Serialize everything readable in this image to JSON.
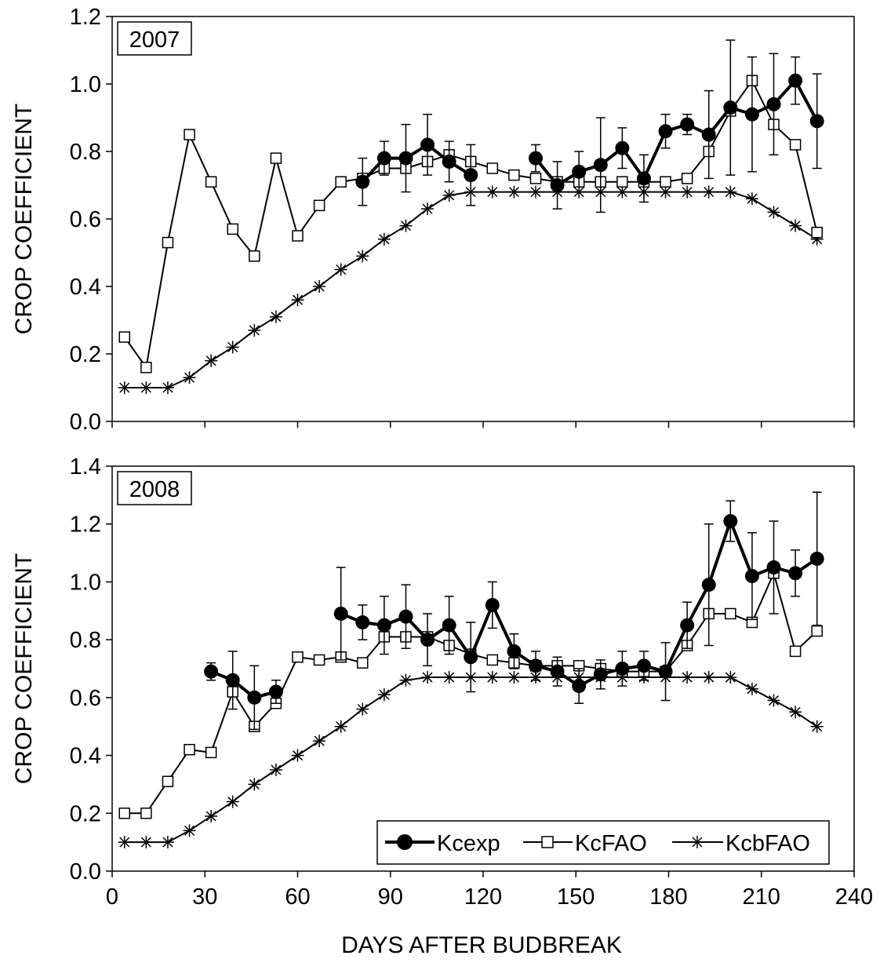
{
  "chart_data": [
    {
      "type": "line",
      "panel_label": "2007",
      "xlabel": "",
      "ylabel": "CROP COEFFICIENT",
      "xlim": [
        0,
        240
      ],
      "ylim": [
        0,
        1.2
      ],
      "yticks": [
        "0.0",
        "0.2",
        "0.4",
        "0.6",
        "0.8",
        "1.0",
        "1.2"
      ],
      "xticks": [],
      "grid": false,
      "series": [
        {
          "name": "Kcexp",
          "marker": "filled-circle",
          "points": [
            [
              81,
              0.71
            ],
            [
              88,
              0.78
            ],
            [
              95,
              0.78
            ],
            [
              102,
              0.82
            ],
            [
              109,
              0.77
            ],
            [
              116,
              0.73
            ],
            null,
            [
              137,
              0.78
            ],
            [
              144,
              0.7
            ],
            [
              151,
              0.74
            ],
            [
              158,
              0.76
            ],
            [
              165,
              0.81
            ],
            [
              172,
              0.72
            ],
            [
              179,
              0.86
            ],
            [
              186,
              0.88
            ],
            [
              193,
              0.85
            ],
            [
              200,
              0.93
            ],
            [
              207,
              0.91
            ],
            [
              214,
              0.94
            ],
            [
              221,
              1.01
            ],
            [
              228,
              0.89
            ]
          ],
          "errors": [
            0.07,
            0.05,
            0.1,
            0.09,
            0.06,
            0.09,
            null,
            0.04,
            0.07,
            0.06,
            0.14,
            0.06,
            0.07,
            0.05,
            0.03,
            0.13,
            0.2,
            0.17,
            0.15,
            0.07,
            0.14
          ]
        },
        {
          "name": "KcFAO",
          "marker": "open-square",
          "points": [
            [
              4,
              0.25
            ],
            [
              11,
              0.16
            ],
            [
              18,
              0.53
            ],
            [
              25,
              0.85
            ],
            [
              32,
              0.71
            ],
            [
              39,
              0.57
            ],
            [
              46,
              0.49
            ],
            [
              53,
              0.78
            ],
            [
              60,
              0.55
            ],
            [
              67,
              0.64
            ],
            [
              74,
              0.71
            ],
            [
              81,
              0.72
            ],
            [
              88,
              0.75
            ],
            [
              95,
              0.75
            ],
            [
              102,
              0.77
            ],
            [
              109,
              0.79
            ],
            [
              116,
              0.77
            ],
            [
              123,
              0.75
            ],
            [
              130,
              0.73
            ],
            [
              137,
              0.72
            ],
            [
              144,
              0.71
            ],
            [
              151,
              0.71
            ],
            [
              158,
              0.71
            ],
            [
              165,
              0.71
            ],
            [
              172,
              0.71
            ],
            [
              179,
              0.71
            ],
            [
              186,
              0.72
            ],
            [
              193,
              0.8
            ],
            [
              200,
              0.92
            ],
            [
              207,
              1.01
            ],
            [
              214,
              0.88
            ],
            [
              221,
              0.82
            ],
            [
              228,
              0.56
            ]
          ]
        },
        {
          "name": "KcbFAO",
          "marker": "asterisk",
          "points": [
            [
              4,
              0.1
            ],
            [
              11,
              0.1
            ],
            [
              18,
              0.1
            ],
            [
              25,
              0.13
            ],
            [
              32,
              0.18
            ],
            [
              39,
              0.22
            ],
            [
              46,
              0.27
            ],
            [
              53,
              0.31
            ],
            [
              60,
              0.36
            ],
            [
              67,
              0.4
            ],
            [
              74,
              0.45
            ],
            [
              81,
              0.49
            ],
            [
              88,
              0.54
            ],
            [
              95,
              0.58
            ],
            [
              102,
              0.63
            ],
            [
              109,
              0.67
            ],
            [
              116,
              0.68
            ],
            [
              123,
              0.68
            ],
            [
              130,
              0.68
            ],
            [
              137,
              0.68
            ],
            [
              144,
              0.68
            ],
            [
              151,
              0.68
            ],
            [
              158,
              0.68
            ],
            [
              165,
              0.68
            ],
            [
              172,
              0.68
            ],
            [
              179,
              0.68
            ],
            [
              186,
              0.68
            ],
            [
              193,
              0.68
            ],
            [
              200,
              0.68
            ],
            [
              207,
              0.66
            ],
            [
              214,
              0.62
            ],
            [
              221,
              0.58
            ],
            [
              228,
              0.54
            ]
          ]
        }
      ]
    },
    {
      "type": "line",
      "panel_label": "2008",
      "xlabel": "DAYS AFTER BUDBREAK",
      "ylabel": "CROP COEFFICIENT",
      "xlim": [
        0,
        240
      ],
      "ylim": [
        0,
        1.4
      ],
      "yticks": [
        "0.0",
        "0.2",
        "0.4",
        "0.6",
        "0.8",
        "1.0",
        "1.2",
        "1.4"
      ],
      "xticks": [
        "0",
        "30",
        "60",
        "90",
        "120",
        "150",
        "180",
        "210",
        "240"
      ],
      "grid": false,
      "legend_position": "bottom-right",
      "series": [
        {
          "name": "Kcexp",
          "marker": "filled-circle",
          "points": [
            [
              32,
              0.69
            ],
            [
              39,
              0.66
            ],
            [
              46,
              0.6
            ],
            [
              53,
              0.62
            ],
            null,
            [
              74,
              0.89
            ],
            [
              81,
              0.86
            ],
            [
              88,
              0.85
            ],
            [
              95,
              0.88
            ],
            [
              102,
              0.8
            ],
            [
              109,
              0.85
            ],
            [
              116,
              0.74
            ],
            [
              123,
              0.92
            ],
            [
              130,
              0.76
            ],
            [
              137,
              0.71
            ],
            [
              144,
              0.69
            ],
            [
              151,
              0.64
            ],
            [
              158,
              0.68
            ],
            [
              165,
              0.7
            ],
            [
              172,
              0.71
            ],
            [
              179,
              0.69
            ],
            [
              186,
              0.85
            ],
            [
              193,
              0.99
            ],
            [
              200,
              1.21
            ],
            [
              207,
              1.02
            ],
            [
              214,
              1.05
            ],
            [
              221,
              1.03
            ],
            [
              228,
              1.08
            ]
          ],
          "errors": [
            0.03,
            0.1,
            0.11,
            0.04,
            null,
            0.16,
            0.06,
            0.1,
            0.11,
            0.09,
            0.1,
            0.12,
            0.08,
            0.06,
            0.05,
            0.05,
            0.06,
            0.05,
            0.06,
            0.05,
            0.1,
            0.08,
            0.21,
            0.07,
            0.15,
            0.16,
            0.08,
            0.23
          ]
        },
        {
          "name": "KcFAO",
          "marker": "open-square",
          "points": [
            [
              4,
              0.2
            ],
            [
              11,
              0.2
            ],
            [
              18,
              0.31
            ],
            [
              25,
              0.42
            ],
            [
              32,
              0.41
            ],
            [
              39,
              0.62
            ],
            [
              46,
              0.5
            ],
            [
              53,
              0.58
            ],
            [
              60,
              0.74
            ],
            [
              67,
              0.73
            ],
            [
              74,
              0.74
            ],
            [
              81,
              0.72
            ],
            [
              88,
              0.81
            ],
            [
              95,
              0.81
            ],
            [
              102,
              0.81
            ],
            [
              109,
              0.78
            ],
            [
              116,
              0.75
            ],
            [
              123,
              0.73
            ],
            [
              130,
              0.72
            ],
            [
              137,
              0.71
            ],
            [
              144,
              0.71
            ],
            [
              151,
              0.71
            ],
            [
              158,
              0.7
            ],
            [
              165,
              0.69
            ],
            [
              172,
              0.69
            ],
            [
              179,
              0.69
            ],
            [
              186,
              0.78
            ],
            [
              193,
              0.89
            ],
            [
              200,
              0.89
            ],
            [
              207,
              0.86
            ],
            [
              214,
              1.03
            ],
            [
              221,
              0.76
            ],
            [
              228,
              0.83
            ]
          ]
        },
        {
          "name": "KcbFAO",
          "marker": "asterisk",
          "points": [
            [
              4,
              0.1
            ],
            [
              11,
              0.1
            ],
            [
              18,
              0.1
            ],
            [
              25,
              0.14
            ],
            [
              32,
              0.19
            ],
            [
              39,
              0.24
            ],
            [
              46,
              0.3
            ],
            [
              53,
              0.35
            ],
            [
              60,
              0.4
            ],
            [
              67,
              0.45
            ],
            [
              74,
              0.5
            ],
            [
              81,
              0.56
            ],
            [
              88,
              0.61
            ],
            [
              95,
              0.66
            ],
            [
              102,
              0.67
            ],
            [
              109,
              0.67
            ],
            [
              116,
              0.67
            ],
            [
              123,
              0.67
            ],
            [
              130,
              0.67
            ],
            [
              137,
              0.67
            ],
            [
              144,
              0.67
            ],
            [
              151,
              0.67
            ],
            [
              158,
              0.67
            ],
            [
              165,
              0.67
            ],
            [
              172,
              0.67
            ],
            [
              179,
              0.67
            ],
            [
              186,
              0.67
            ],
            [
              193,
              0.67
            ],
            [
              200,
              0.67
            ],
            [
              207,
              0.63
            ],
            [
              214,
              0.59
            ],
            [
              221,
              0.55
            ],
            [
              228,
              0.5
            ]
          ]
        }
      ]
    }
  ]
}
